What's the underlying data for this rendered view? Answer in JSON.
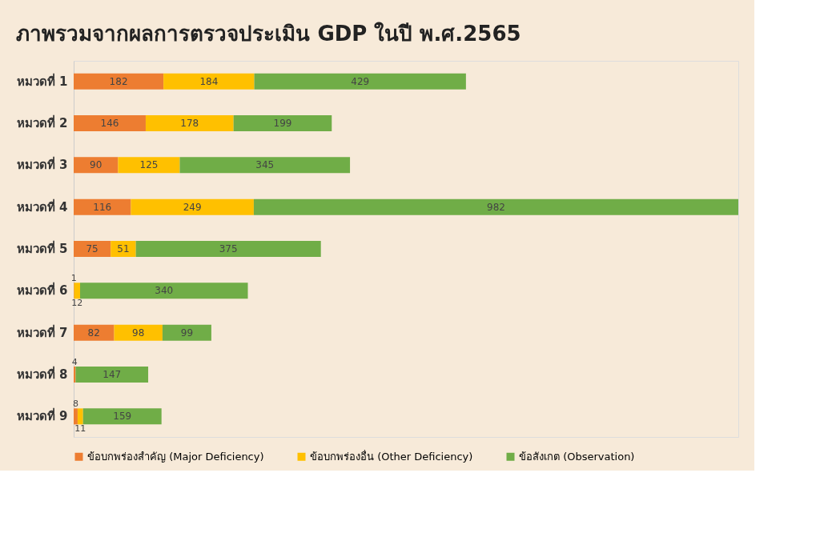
{
  "chart_data": {
    "type": "bar",
    "orientation": "horizontal",
    "stacked": true,
    "title": "ภาพรวมจากผลการตรวจประเมิน GDP ในปี พ.ศ.2565",
    "categories": [
      "หมวดที่ 1",
      "หมวดที่ 2",
      "หมวดที่ 3",
      "หมวดที่ 4",
      "หมวดที่ 5",
      "หมวดที่ 6",
      "หมวดที่ 7",
      "หมวดที่ 8",
      "หมวดที่ 9"
    ],
    "series": [
      {
        "name": "ข้อบกพร่องสำคัญ (Major Deficiency)",
        "color": "#ed7d31",
        "values": [
          182,
          146,
          90,
          116,
          75,
          1,
          82,
          4,
          8
        ]
      },
      {
        "name": "ข้อบกพร่องอื่น (Other Deficiency)",
        "color": "#ffc000",
        "values": [
          184,
          178,
          125,
          249,
          51,
          12,
          98,
          null,
          11
        ]
      },
      {
        "name": "ข้อสังเกต (Observation)",
        "color": "#70ad47",
        "values": [
          429,
          199,
          345,
          982,
          375,
          340,
          99,
          147,
          159
        ]
      }
    ],
    "data_labels": true,
    "legend": "bottom",
    "tick_labels": "y",
    "grid": false
  }
}
